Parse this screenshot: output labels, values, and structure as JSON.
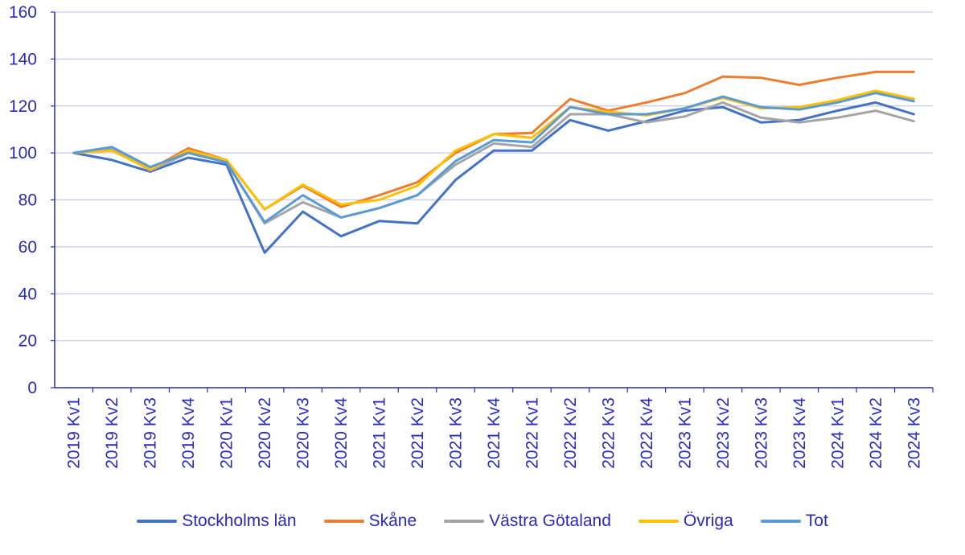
{
  "chart_data": {
    "type": "line",
    "title": "",
    "xlabel": "",
    "ylabel": "",
    "ylim": [
      0,
      160
    ],
    "yticks": [
      0,
      20,
      40,
      60,
      80,
      100,
      120,
      140,
      160
    ],
    "grid": true,
    "legend_position": "bottom",
    "categories": [
      "2019 Kv1",
      "2019 Kv2",
      "2019 Kv3",
      "2019 Kv4",
      "2020 Kv1",
      "2020 Kv2",
      "2020 Kv3",
      "2020 Kv4",
      "2021 Kv1",
      "2021 Kv2",
      "2021 Kv3",
      "2021 Kv4",
      "2022 Kv1",
      "2022 Kv2",
      "2022 Kv3",
      "2022 Kv4",
      "2023 Kv1",
      "2023 Kv2",
      "2023 Kv3",
      "2023 Kv4",
      "2024 Kv1",
      "2024 Kv2",
      "2024 Kv3"
    ],
    "series": [
      {
        "name": "Stockholms län",
        "color": "#4472c4",
        "values": [
          100,
          97,
          92,
          98,
          95,
          57.5,
          75,
          64.5,
          71,
          70,
          88.5,
          101,
          101,
          114,
          109.5,
          113.5,
          118,
          119.5,
          113,
          114,
          118,
          121.5,
          116.5
        ]
      },
      {
        "name": "Skåne",
        "color": "#ed7d31",
        "values": [
          100,
          102,
          93,
          102,
          97,
          76,
          86,
          77,
          82,
          87.5,
          100,
          108,
          108.5,
          123,
          118,
          121.5,
          125.5,
          132.5,
          132,
          129,
          132,
          134.5,
          134.5
        ]
      },
      {
        "name": "Västra Götaland",
        "color": "#a5a5a5",
        "values": [
          100,
          102,
          92.5,
          100,
          96,
          70,
          79,
          72.5,
          76.5,
          82,
          95,
          104,
          102.5,
          116.5,
          116.5,
          113,
          115.5,
          121.5,
          115,
          113,
          115,
          118,
          113.5
        ]
      },
      {
        "name": "Övriga",
        "color": "#ffc000",
        "values": [
          100,
          101,
          93,
          101,
          97,
          76,
          86.5,
          78,
          80,
          86,
          101,
          108,
          106.5,
          119.5,
          117.5,
          116,
          119,
          123.5,
          119,
          119.5,
          122.5,
          126.5,
          123
        ]
      },
      {
        "name": "Tot",
        "color": "#5b9bd5",
        "values": [
          100,
          102.5,
          94,
          100,
          96,
          70.5,
          82,
          72.5,
          76.5,
          82,
          96.5,
          105.5,
          104.5,
          119.5,
          116.5,
          116.5,
          119,
          124,
          119.5,
          118.5,
          121.5,
          125.5,
          122
        ]
      }
    ]
  }
}
